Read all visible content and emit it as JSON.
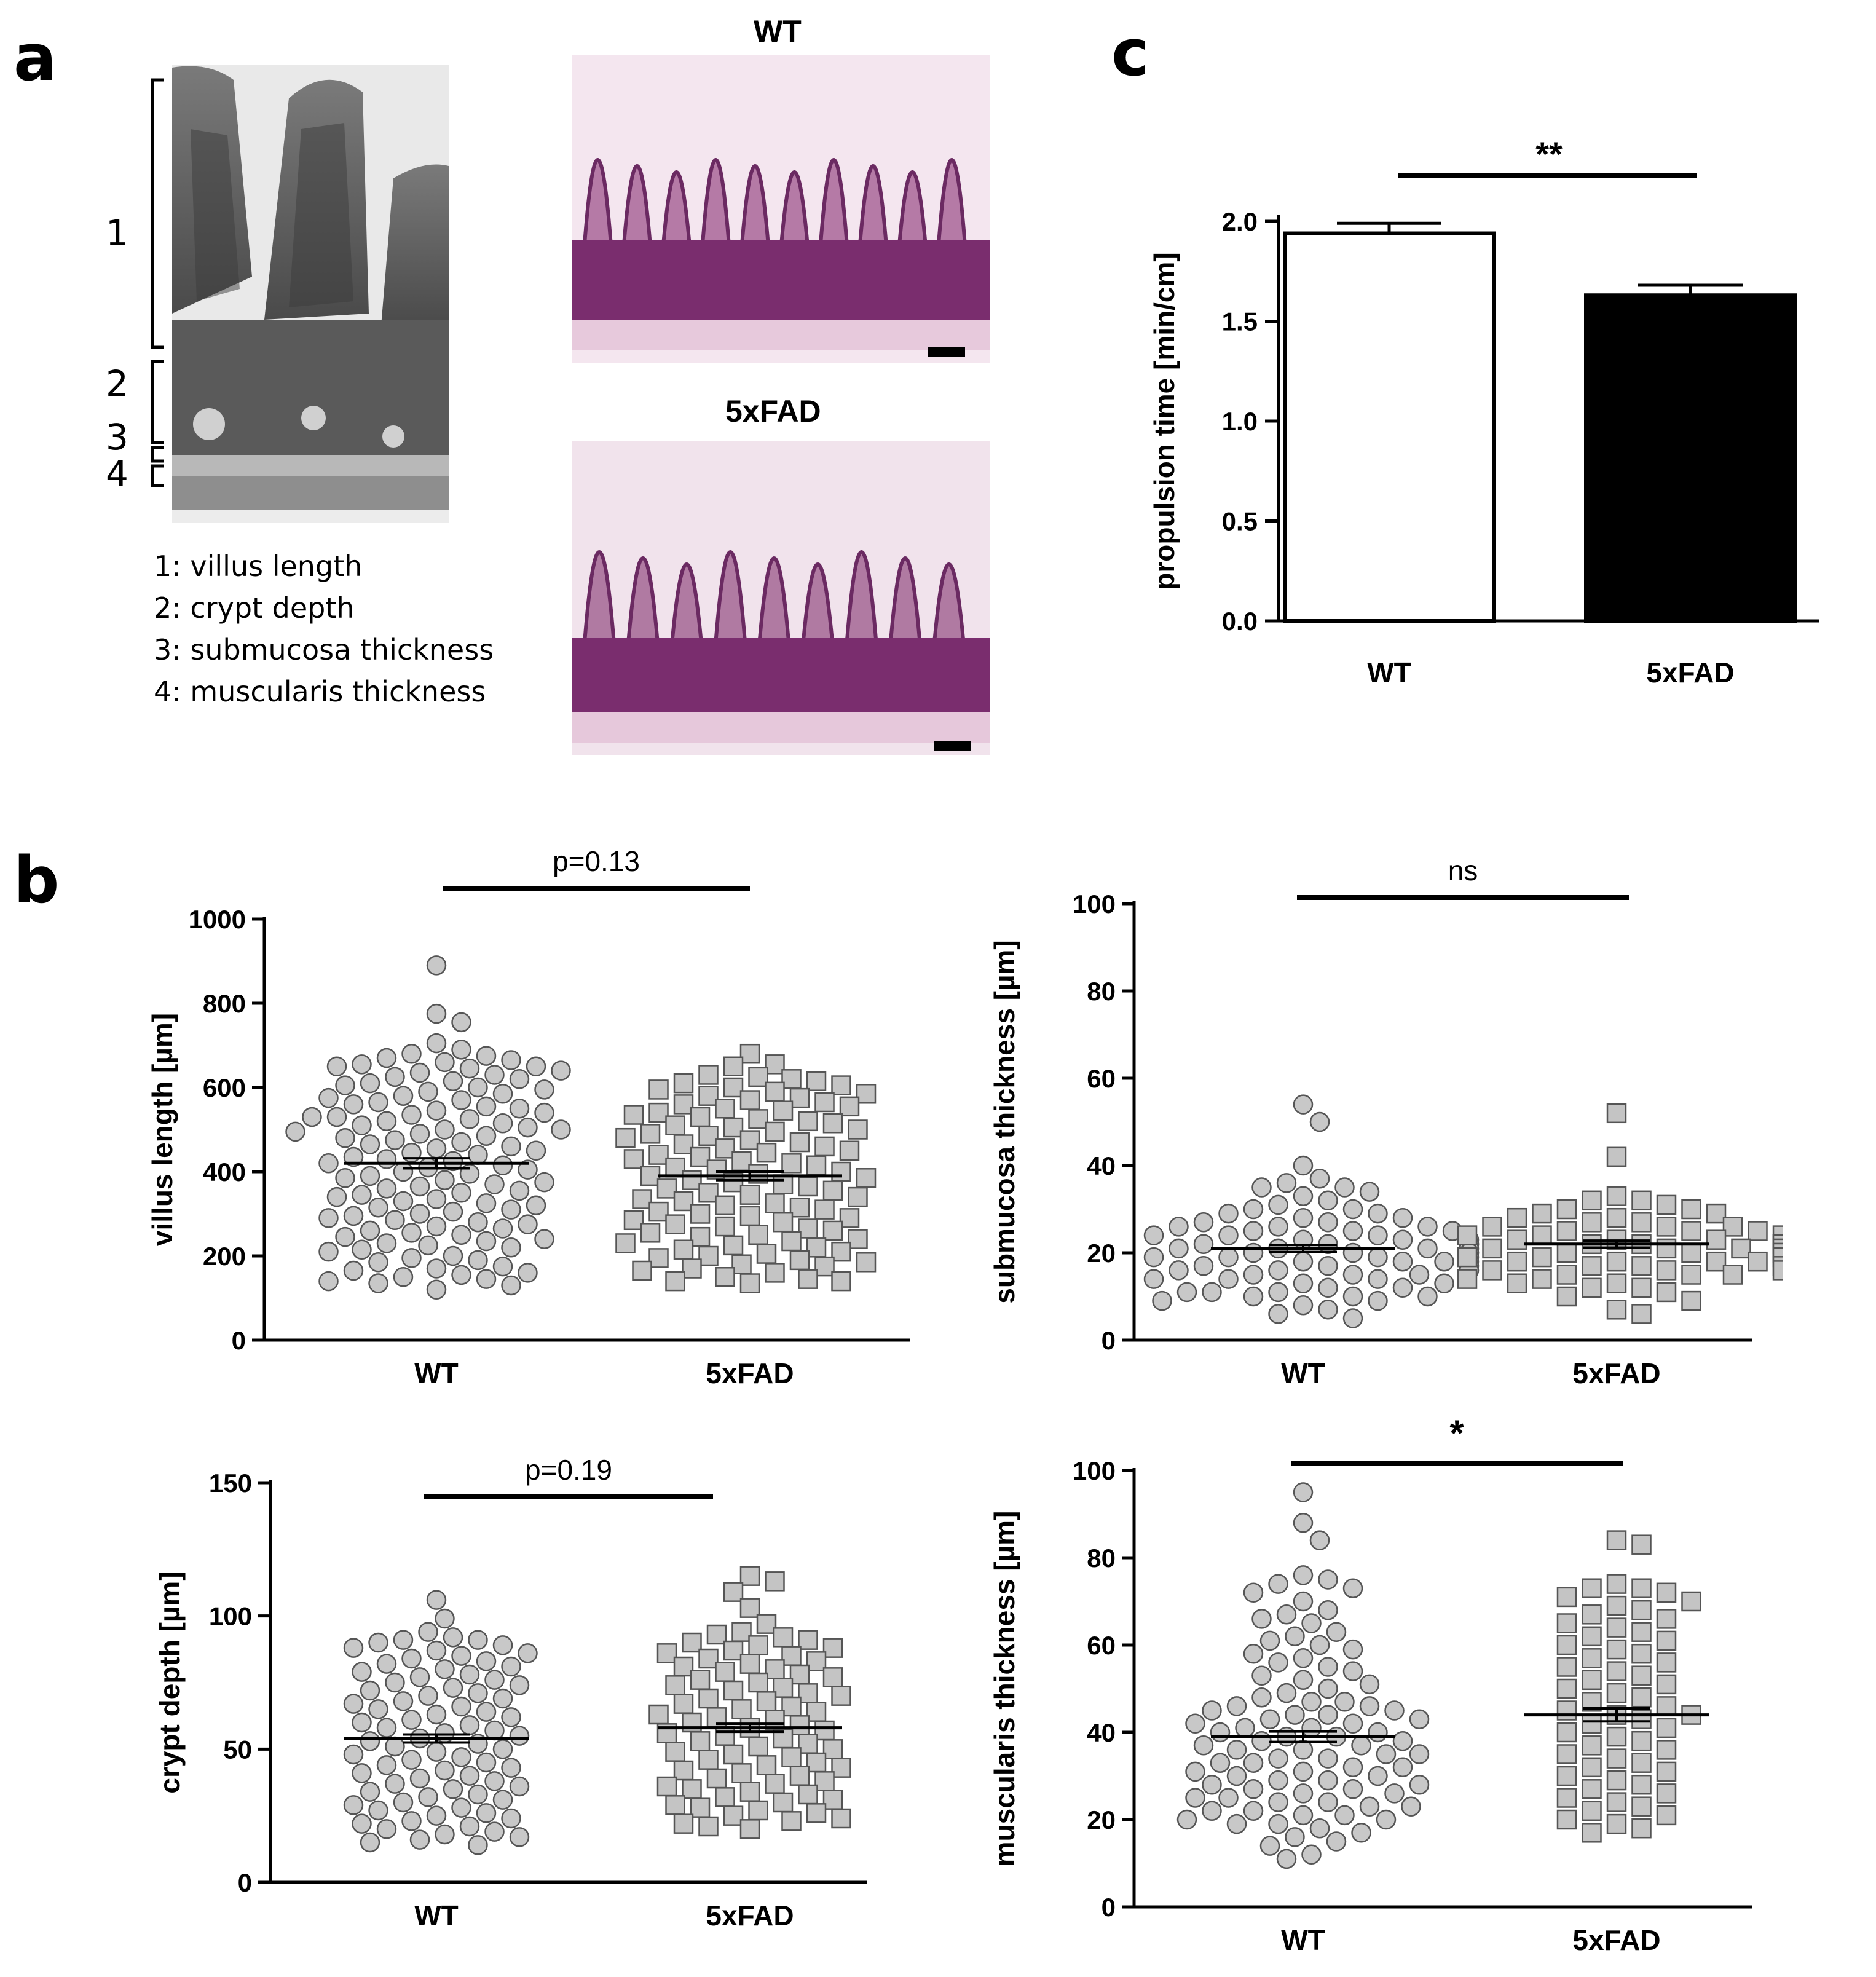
{
  "panels": {
    "a": {
      "letter": "a",
      "bracket_numbers": [
        "1",
        "2",
        "3",
        "4"
      ],
      "legend": [
        "1: villus length",
        "2: crypt depth",
        "3: submucosa thickness",
        "4: muscularis thickness"
      ],
      "image_titles": [
        "WT",
        "5xFAD"
      ]
    },
    "b": {
      "letter": "b"
    },
    "c": {
      "letter": "c"
    }
  },
  "colors": {
    "wt_marker": "#c8c8c8",
    "fad_marker": "#c4c4c4",
    "axis": "#000000",
    "wt_bar": "#ffffff",
    "fad_bar": "#000000"
  },
  "chart_data": [
    {
      "id": "propulsion",
      "type": "bar",
      "title": "",
      "categories": [
        "WT",
        "5xFAD"
      ],
      "values": [
        1.94,
        1.63
      ],
      "errors": [
        0.05,
        0.05
      ],
      "ylabel": "propulsion time [min/cm]",
      "xlabel": "",
      "ylim": [
        0,
        2.0
      ],
      "yticks": [
        "0.0",
        "0.5",
        "1.0",
        "1.5",
        "2.0"
      ],
      "significance": "**"
    },
    {
      "id": "villus",
      "type": "scatter",
      "title": "",
      "ylabel": "villus length [µm]",
      "ylim": [
        0,
        1000
      ],
      "yticks": [
        "0",
        "200",
        "400",
        "600",
        "800",
        "1000"
      ],
      "significance": "p=0.13",
      "series": [
        {
          "name": "WT",
          "marker": "circle",
          "mean": 420,
          "sem": 12,
          "values": [
            890,
            775,
            755,
            705,
            690,
            680,
            675,
            670,
            665,
            660,
            655,
            650,
            650,
            645,
            640,
            635,
            630,
            625,
            620,
            615,
            610,
            605,
            600,
            595,
            590,
            585,
            580,
            575,
            570,
            565,
            560,
            555,
            550,
            545,
            540,
            535,
            530,
            530,
            525,
            520,
            515,
            510,
            505,
            500,
            500,
            495,
            490,
            485,
            480,
            475,
            470,
            465,
            460,
            455,
            450,
            445,
            440,
            435,
            430,
            425,
            420,
            415,
            410,
            405,
            400,
            395,
            390,
            385,
            380,
            375,
            370,
            365,
            360,
            355,
            350,
            345,
            340,
            335,
            330,
            325,
            320,
            315,
            310,
            305,
            300,
            295,
            290,
            285,
            280,
            275,
            270,
            265,
            260,
            255,
            250,
            245,
            240,
            235,
            230,
            225,
            220,
            215,
            210,
            200,
            195,
            190,
            185,
            175,
            170,
            165,
            160,
            155,
            150,
            145,
            140,
            135,
            130,
            120
          ]
        },
        {
          "name": "5xFAD",
          "marker": "square",
          "mean": 390,
          "sem": 10,
          "values": [
            680,
            655,
            650,
            630,
            625,
            620,
            615,
            610,
            605,
            600,
            595,
            590,
            585,
            580,
            575,
            570,
            565,
            560,
            555,
            550,
            545,
            540,
            535,
            530,
            525,
            520,
            515,
            510,
            505,
            500,
            495,
            490,
            485,
            480,
            475,
            470,
            465,
            460,
            455,
            450,
            445,
            440,
            435,
            430,
            425,
            420,
            415,
            410,
            405,
            400,
            395,
            390,
            385,
            380,
            375,
            370,
            365,
            360,
            355,
            350,
            345,
            340,
            335,
            330,
            325,
            320,
            315,
            310,
            305,
            300,
            295,
            290,
            285,
            280,
            275,
            270,
            265,
            260,
            255,
            250,
            245,
            240,
            235,
            230,
            225,
            220,
            215,
            210,
            205,
            200,
            195,
            190,
            185,
            180,
            175,
            170,
            165,
            160,
            150,
            145,
            140,
            140,
            135
          ]
        }
      ]
    },
    {
      "id": "submucosa",
      "type": "scatter",
      "title": "",
      "ylabel": "submucosa thickness [µm]",
      "ylim": [
        0,
        100
      ],
      "yticks": [
        "0",
        "20",
        "40",
        "60",
        "80",
        "100"
      ],
      "significance": "ns",
      "series": [
        {
          "name": "WT",
          "marker": "circle",
          "mean": 21,
          "sem": 0.8,
          "values": [
            54,
            50,
            40,
            37,
            36,
            35,
            35,
            34,
            33,
            32,
            31,
            30,
            30,
            29,
            29,
            28,
            28,
            27,
            27,
            26,
            26,
            26,
            25,
            25,
            25,
            24,
            24,
            24,
            23,
            23,
            23,
            22,
            22,
            22,
            22,
            21,
            21,
            21,
            21,
            20,
            20,
            20,
            20,
            19,
            19,
            19,
            19,
            18,
            18,
            18,
            18,
            17,
            17,
            17,
            16,
            16,
            16,
            15,
            15,
            15,
            14,
            14,
            14,
            13,
            13,
            12,
            12,
            11,
            11,
            11,
            10,
            10,
            10,
            9,
            9,
            8,
            7,
            6,
            5
          ]
        },
        {
          "name": "5xFAD",
          "marker": "square",
          "mean": 22,
          "sem": 0.8,
          "values": [
            52,
            42,
            33,
            32,
            32,
            31,
            30,
            30,
            29,
            29,
            28,
            28,
            27,
            27,
            26,
            26,
            26,
            25,
            25,
            25,
            24,
            24,
            24,
            23,
            23,
            23,
            22,
            22,
            22,
            22,
            21,
            21,
            21,
            21,
            20,
            20,
            20,
            20,
            19,
            19,
            19,
            18,
            18,
            18,
            18,
            17,
            17,
            17,
            16,
            16,
            16,
            15,
            15,
            15,
            14,
            14,
            13,
            13,
            12,
            12,
            11,
            10,
            9,
            7,
            6
          ]
        }
      ]
    },
    {
      "id": "crypt",
      "type": "scatter",
      "title": "",
      "ylabel": "crypt depth [µm]",
      "ylim": [
        0,
        150
      ],
      "yticks": [
        "0",
        "50",
        "100",
        "150"
      ],
      "significance": "p=0.19",
      "series": [
        {
          "name": "WT",
          "marker": "circle",
          "mean": 54,
          "sem": 1.5,
          "values": [
            106,
            99,
            94,
            92,
            91,
            91,
            90,
            89,
            88,
            87,
            86,
            85,
            84,
            83,
            82,
            81,
            80,
            79,
            78,
            77,
            76,
            75,
            74,
            73,
            72,
            71,
            70,
            69,
            68,
            67,
            66,
            65,
            64,
            63,
            62,
            61,
            60,
            59,
            58,
            57,
            56,
            55,
            54,
            53,
            52,
            51,
            50,
            49,
            48,
            47,
            46,
            45,
            44,
            43,
            42,
            41,
            40,
            39,
            38,
            37,
            36,
            35,
            34,
            33,
            32,
            31,
            30,
            29,
            28,
            27,
            26,
            25,
            24,
            23,
            22,
            21,
            20,
            19,
            18,
            17,
            16,
            15,
            14
          ]
        },
        {
          "name": "5xFAD",
          "marker": "square",
          "mean": 58,
          "sem": 1.5,
          "values": [
            115,
            113,
            109,
            103,
            97,
            94,
            93,
            92,
            91,
            90,
            89,
            88,
            87,
            86,
            85,
            84,
            83,
            82,
            81,
            80,
            79,
            78,
            77,
            76,
            75,
            74,
            73,
            72,
            71,
            70,
            69,
            68,
            67,
            66,
            65,
            64,
            63,
            62,
            61,
            60,
            59,
            58,
            57,
            56,
            55,
            54,
            53,
            52,
            51,
            50,
            49,
            48,
            47,
            46,
            45,
            44,
            43,
            42,
            41,
            40,
            39,
            38,
            37,
            36,
            35,
            34,
            33,
            32,
            31,
            30,
            29,
            28,
            27,
            26,
            25,
            24,
            23,
            22,
            21,
            20
          ]
        }
      ]
    },
    {
      "id": "muscularis",
      "type": "scatter",
      "title": "",
      "ylabel": "muscularis thickness [µm]",
      "ylim": [
        0,
        100
      ],
      "yticks": [
        "0",
        "20",
        "40",
        "60",
        "80",
        "100"
      ],
      "significance": "*",
      "series": [
        {
          "name": "WT",
          "marker": "circle",
          "mean": 39,
          "sem": 1.2,
          "values": [
            95,
            88,
            84,
            76,
            75,
            74,
            73,
            72,
            70,
            68,
            67,
            66,
            65,
            63,
            62,
            61,
            60,
            59,
            58,
            57,
            56,
            55,
            54,
            53,
            52,
            51,
            50,
            49,
            48,
            47,
            47,
            46,
            46,
            45,
            45,
            44,
            44,
            43,
            43,
            42,
            42,
            41,
            41,
            40,
            40,
            39,
            39,
            38,
            38,
            37,
            37,
            36,
            36,
            35,
            35,
            34,
            34,
            33,
            33,
            32,
            32,
            31,
            31,
            30,
            30,
            29,
            29,
            28,
            28,
            27,
            27,
            26,
            26,
            25,
            25,
            24,
            24,
            23,
            23,
            22,
            22,
            21,
            21,
            20,
            20,
            19,
            19,
            18,
            17,
            16,
            15,
            14,
            12,
            11
          ]
        },
        {
          "name": "5xFAD",
          "marker": "square",
          "mean": 44,
          "sem": 1.5,
          "values": [
            84,
            83,
            74,
            73,
            73,
            72,
            71,
            70,
            69,
            68,
            67,
            66,
            65,
            64,
            63,
            62,
            61,
            60,
            59,
            58,
            57,
            56,
            55,
            54,
            53,
            52,
            51,
            50,
            49,
            48,
            47,
            46,
            45,
            44,
            44,
            43,
            42,
            41,
            40,
            39,
            38,
            37,
            36,
            35,
            34,
            33,
            32,
            31,
            30,
            29,
            28,
            27,
            26,
            25,
            24,
            23,
            22,
            21,
            20,
            19,
            18,
            17
          ]
        }
      ]
    }
  ]
}
